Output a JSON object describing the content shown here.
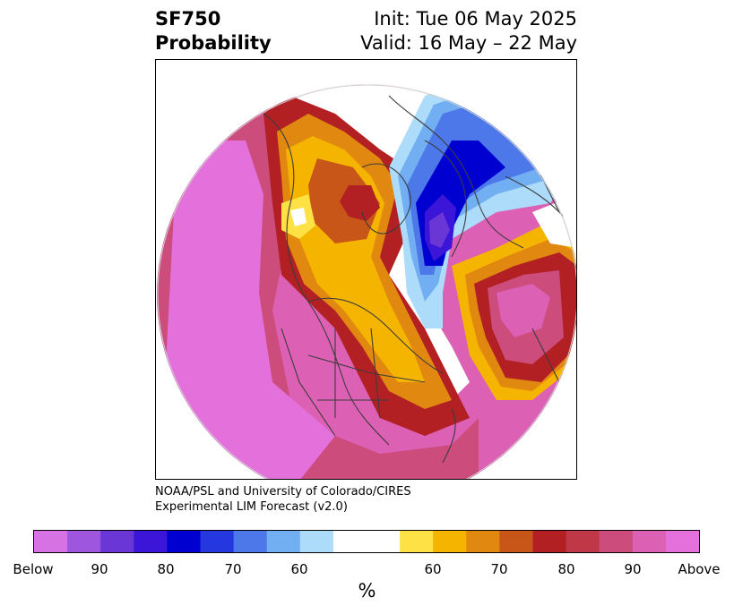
{
  "title": {
    "left_line1": "SF750",
    "left_line2": "Probability",
    "right_line1": "Init: Tue 06 May 2025",
    "right_line2": "Valid: 16 May – 22 May"
  },
  "credit": {
    "line1": "NOAA/PSL and University of Colorado/CIRES",
    "line2": "Experimental LIM Forecast (v2.0)"
  },
  "colorbar": {
    "units": "%",
    "colors": [
      "#d672e4",
      "#9e56df",
      "#6a36d6",
      "#3c16d8",
      "#0000d0",
      "#2538e0",
      "#4c78ea",
      "#72aef2",
      "#acdcfa",
      "#ffffff",
      "#ffffff",
      "#fee145",
      "#f4b400",
      "#e08810",
      "#c85618",
      "#b22024",
      "#c03848",
      "#cc4c7c",
      "#dc60b4",
      "#e470dc"
    ],
    "tick_labels": [
      "Below",
      "90",
      "80",
      "70",
      "60",
      "60",
      "70",
      "80",
      "90",
      "Above"
    ]
  },
  "map": {
    "land_lines_color": "#3c3c3c",
    "above_colors": {
      "a90": "#e470dc",
      "a80": "#cc4c7c",
      "a70": "#b22024",
      "a65": "#c85618",
      "a60": "#e08810",
      "a55": "#f4b400",
      "a50": "#fee145"
    },
    "below_colors": {
      "b90": "#6a36d6",
      "b80": "#3c16d8",
      "b75": "#0000d0",
      "b70": "#2538e0",
      "b65": "#4c78ea",
      "b60": "#72aef2",
      "b55": "#acdcfa",
      "b50": "#9e56df"
    }
  }
}
